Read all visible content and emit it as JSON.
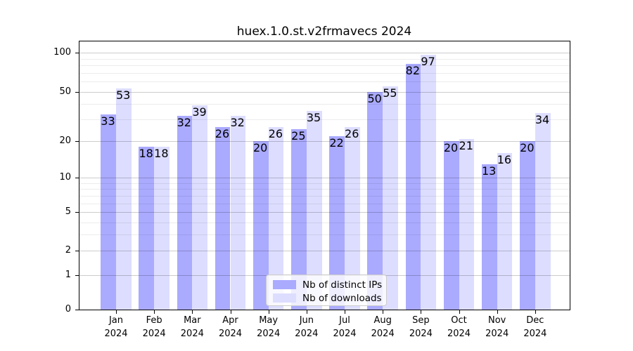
{
  "title": "huex.1.0.st.v2frmavecs 2024",
  "chart_data": {
    "type": "bar",
    "title": "huex.1.0.st.v2frmavecs 2024",
    "categories": [
      "Jan",
      "Feb",
      "Mar",
      "Apr",
      "May",
      "Jun",
      "Jul",
      "Aug",
      "Sep",
      "Oct",
      "Nov",
      "Dec"
    ],
    "year_line": "2024",
    "series": [
      {
        "name": "Nb of distinct IPs",
        "color": "#aaaaff",
        "values": [
          33,
          18,
          32,
          26,
          20,
          25,
          22,
          50,
          82,
          20,
          13,
          20
        ]
      },
      {
        "name": "Nb of downloads",
        "color": "#ddddff",
        "values": [
          53,
          18,
          39,
          32,
          26,
          35,
          26,
          55,
          97,
          21,
          16,
          34
        ]
      }
    ],
    "yscale": "log1p",
    "yticks": [
      0,
      1,
      2,
      5,
      10,
      20,
      50,
      100
    ],
    "minor_yticks": [
      3,
      4,
      6,
      7,
      8,
      9,
      30,
      40,
      60,
      70,
      80,
      90
    ],
    "ylim": [
      0,
      120
    ],
    "grid": true,
    "legend_position": "bottom-center"
  }
}
